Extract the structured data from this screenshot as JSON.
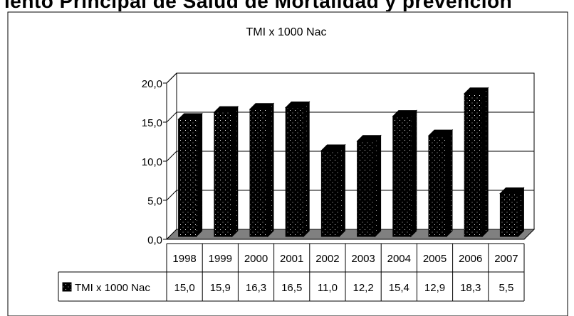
{
  "page_heading_partial": "iento  Principal de Salud  de Mortalidad y   prevención",
  "chart_data": {
    "type": "bar",
    "title": "TMI x 1000 Nac",
    "categories": [
      "1998",
      "1999",
      "2000",
      "2001",
      "2002",
      "2003",
      "2004",
      "2005",
      "2006",
      "2007"
    ],
    "series": [
      {
        "name": "TMI x 1000 Nac",
        "values": [
          15.0,
          15.9,
          16.3,
          16.5,
          11.0,
          12.2,
          15.4,
          12.9,
          18.3,
          5.5
        ],
        "labels": [
          "15,0",
          "15,9",
          "16,3",
          "16,5",
          "11,0",
          "12,2",
          "15,4",
          "12,9",
          "18,3",
          "5,5"
        ]
      }
    ],
    "ylim": [
      0,
      20
    ],
    "yticks": [
      "0,0",
      "5,0",
      "10,0",
      "15,0",
      "20,0"
    ],
    "ytick_values": [
      0,
      5,
      10,
      15,
      20
    ],
    "grid": true,
    "legend_placement": "data-table",
    "bar_color": "#000000",
    "floor_color": "#808080"
  }
}
